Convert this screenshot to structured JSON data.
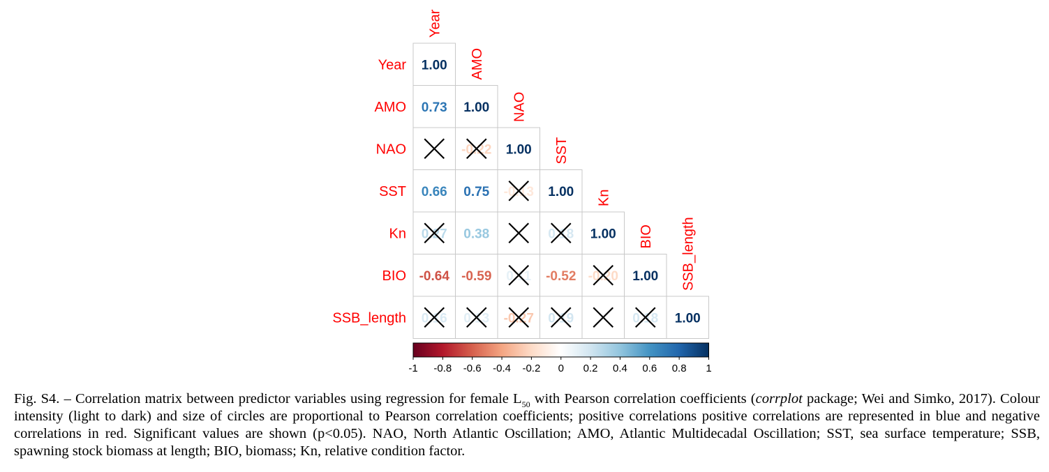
{
  "chart_data": {
    "type": "heatmap",
    "variables": [
      "Year",
      "AMO",
      "NAO",
      "SST",
      "Kn",
      "BIO",
      "SSB_length"
    ],
    "lower_triangle": [
      [
        1.0
      ],
      [
        0.73,
        1.0
      ],
      [
        null,
        -0.22,
        1.0
      ],
      [
        0.66,
        0.75,
        -0.13,
        1.0
      ],
      [
        0.27,
        0.38,
        null,
        0.18,
        1.0
      ],
      [
        -0.64,
        -0.59,
        0.11,
        -0.52,
        -0.2,
        1.0
      ],
      [
        0.16,
        0.13,
        -0.27,
        0.19,
        null,
        0.18,
        1.0
      ]
    ],
    "non_significant": [
      [
        2,
        0
      ],
      [
        2,
        1
      ],
      [
        3,
        2
      ],
      [
        4,
        0
      ],
      [
        4,
        2
      ],
      [
        4,
        3
      ],
      [
        5,
        2
      ],
      [
        5,
        4
      ],
      [
        6,
        0
      ],
      [
        6,
        1
      ],
      [
        6,
        2
      ],
      [
        6,
        3
      ],
      [
        6,
        4
      ],
      [
        6,
        5
      ]
    ],
    "colorbar": {
      "ticks": [
        "-1",
        "-0.8",
        "-0.6",
        "-0.4",
        "-0.2",
        "0",
        "0.2",
        "0.4",
        "0.6",
        "0.8",
        "1"
      ],
      "range": [
        -1,
        1
      ],
      "colors": [
        "#67001f",
        "#b2182b",
        "#d6604d",
        "#f4a582",
        "#fddbc7",
        "#ffffff",
        "#d1e5f0",
        "#92c5de",
        "#4393c3",
        "#2166ac",
        "#053061"
      ]
    }
  },
  "caption": {
    "fig_label": "Fig. S4.",
    "text_1": "– Correlation matrix between predictor variables using regression for female L",
    "subscript": "50",
    "text_2": " with Pearson correlation coefficients (",
    "italic": "corrplot",
    "text_3": " package; Wei and Simko, 2017). Colour intensity (light to dark) and size of circles are proportional to Pearson correlation coefficients; positive correlations positive correlations are represented in blue and negative correlations in red. Significant values are shown (p<0.05). NAO, North Atlantic Oscillation; AMO, Atlantic Multidecadal Oscillation; SST, sea surface temperature; SSB, spawning stock biomass at length; BIO, biomass; Kn, relative condition factor."
  }
}
